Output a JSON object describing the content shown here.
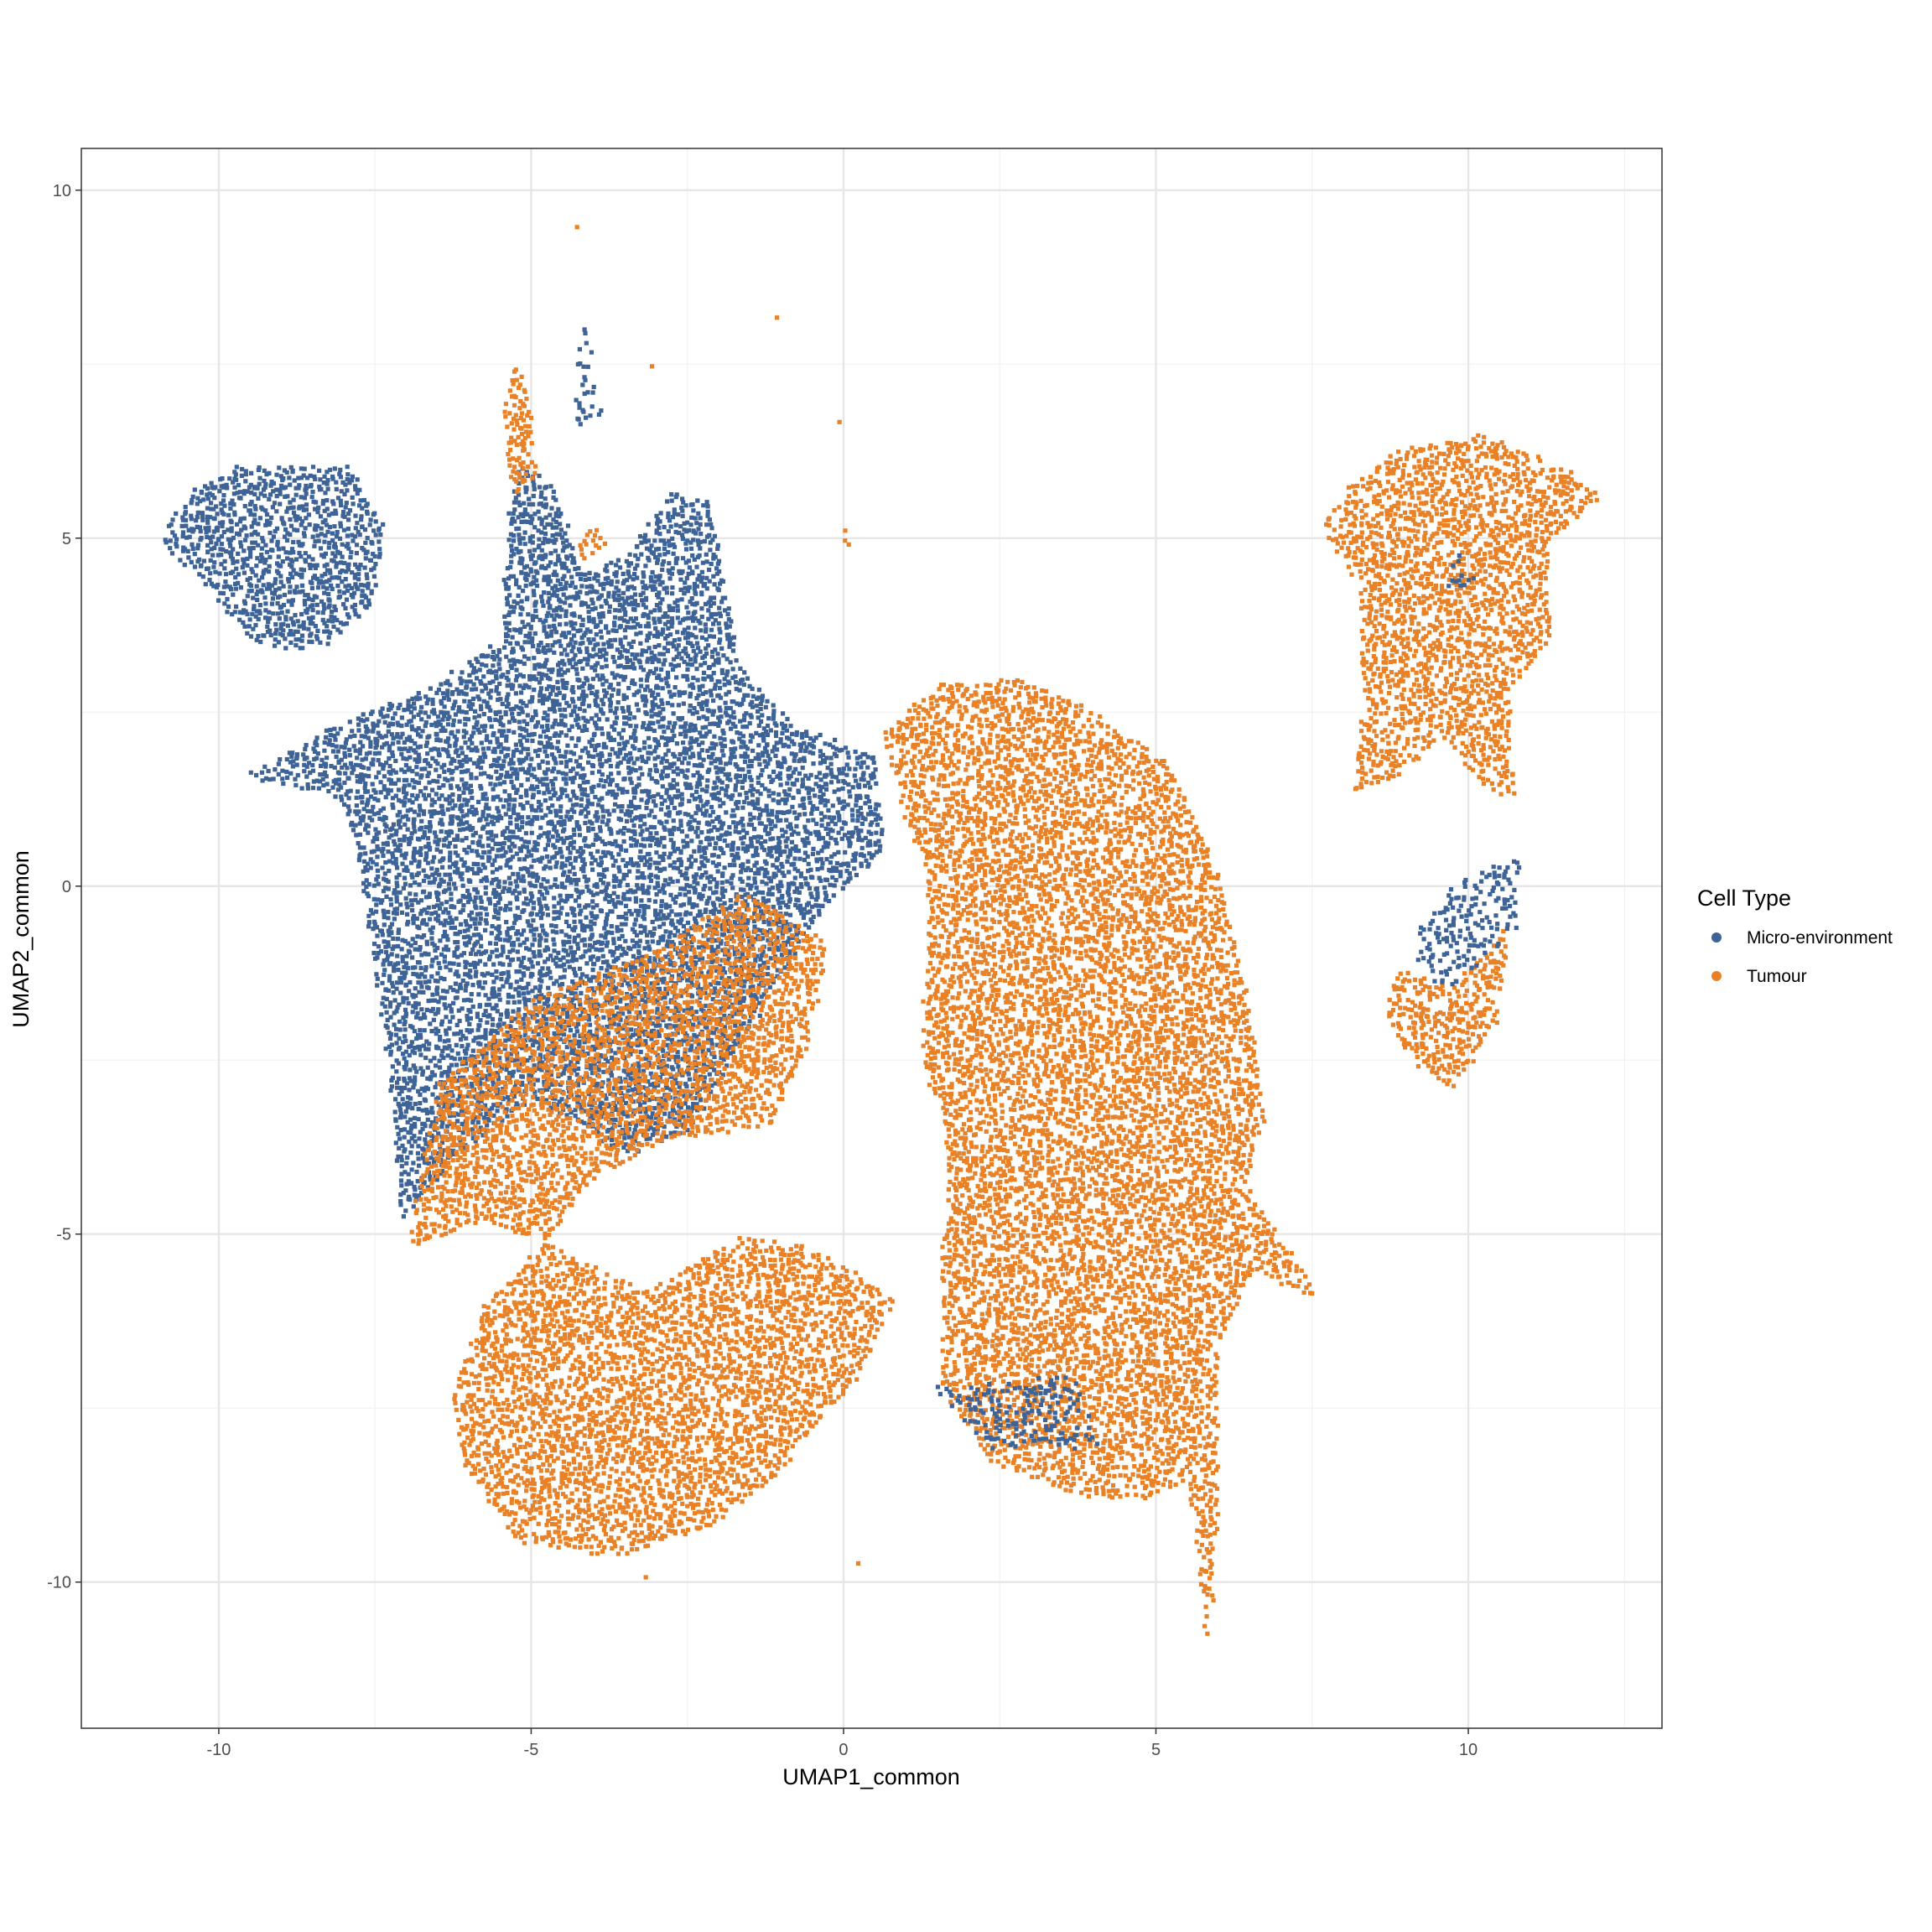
{
  "chart_data": {
    "type": "scatter",
    "xlabel": "UMAP1_common",
    "ylabel": "UMAP2_common",
    "xlim": [
      -12.2,
      13.1
    ],
    "ylim": [
      -12.1,
      10.6
    ],
    "x_ticks": [
      -10,
      -5,
      0,
      5,
      10
    ],
    "y_ticks": [
      -10,
      -5,
      0,
      5,
      10
    ],
    "x_tick_labels": [
      "-10",
      "-5",
      "0",
      "5",
      "10"
    ],
    "y_tick_labels": [
      "-10",
      "-5",
      "0",
      "5",
      "10"
    ],
    "grid": true,
    "legend": {
      "title": "Cell Type",
      "position": "right",
      "entries": [
        "Micro-environment",
        "Tumour"
      ]
    },
    "series": [
      {
        "name": "Micro-environment",
        "color": "#3e6396",
        "regions": [
          [
            [
              -11.0,
              5.0
            ],
            [
              -10.5,
              5.7
            ],
            [
              -9.6,
              6.1
            ],
            [
              -8.0,
              6.1
            ],
            [
              -7.4,
              5.2
            ],
            [
              -7.6,
              4.0
            ],
            [
              -8.5,
              3.4
            ],
            [
              -9.4,
              3.5
            ],
            [
              -10.5,
              4.6
            ]
          ],
          [
            [
              -9.5,
              1.7
            ],
            [
              -8.0,
              2.4
            ],
            [
              -6.6,
              2.9
            ],
            [
              -5.5,
              3.6
            ],
            [
              -5.4,
              5.4
            ],
            [
              -5.2,
              6.1
            ],
            [
              -4.7,
              5.8
            ],
            [
              -4.2,
              4.5
            ],
            [
              -3.5,
              4.8
            ],
            [
              -2.8,
              5.7
            ],
            [
              -2.2,
              5.6
            ],
            [
              -1.9,
              4.4
            ],
            [
              -1.7,
              3.2
            ],
            [
              -0.8,
              2.3
            ],
            [
              0.5,
              1.9
            ],
            [
              0.6,
              0.5
            ],
            [
              -0.3,
              -0.2
            ],
            [
              -1.2,
              -1.5
            ],
            [
              -2.5,
              -3.5
            ],
            [
              -3.5,
              -3.8
            ],
            [
              -5.0,
              -3.0
            ],
            [
              -6.2,
              -3.8
            ],
            [
              -7.1,
              -4.8
            ],
            [
              -7.3,
              -2.5
            ],
            [
              -7.8,
              0.5
            ],
            [
              -8.1,
              1.3
            ],
            [
              -9.5,
              1.6
            ]
          ]
        ],
        "patches": [
          [
            [
              -4.2,
              8.2
            ],
            [
              -3.9,
              6.8
            ],
            [
              -4.4,
              6.6
            ]
          ],
          [
            [
              1.4,
              -7.2
            ],
            [
              3.6,
              -7.0
            ],
            [
              4.1,
              -8.0
            ],
            [
              2.4,
              -8.1
            ]
          ],
          [
            [
              9.2,
              -0.5
            ],
            [
              9.8,
              0.1
            ],
            [
              10.8,
              0.4
            ],
            [
              10.7,
              -0.6
            ],
            [
              9.6,
              -1.6
            ],
            [
              9.2,
              -1.0
            ]
          ],
          [
            [
              9.8,
              4.8
            ],
            [
              10.1,
              4.4
            ],
            [
              9.6,
              4.3
            ]
          ]
        ]
      },
      {
        "name": "Tumour",
        "color": "#e98226",
        "regions": [
          [
            [
              0.6,
              2.2
            ],
            [
              1.5,
              2.9
            ],
            [
              2.8,
              3.0
            ],
            [
              3.8,
              2.6
            ],
            [
              5.2,
              1.8
            ],
            [
              5.8,
              0.6
            ],
            [
              6.2,
              -0.6
            ],
            [
              6.5,
              -1.8
            ],
            [
              6.7,
              -3.3
            ],
            [
              6.4,
              -4.3
            ],
            [
              7.6,
              -5.9
            ],
            [
              6.5,
              -5.5
            ],
            [
              6.0,
              -6.5
            ],
            [
              6.0,
              -8.5
            ],
            [
              5.8,
              -10.9
            ],
            [
              5.5,
              -8.5
            ],
            [
              4.7,
              -8.8
            ],
            [
              3.6,
              -8.7
            ],
            [
              2.3,
              -8.2
            ],
            [
              1.5,
              -7.2
            ],
            [
              1.5,
              -5.9
            ],
            [
              1.6,
              -4.7
            ],
            [
              1.6,
              -3.5
            ],
            [
              1.2,
              -2.5
            ],
            [
              1.3,
              -1.0
            ],
            [
              1.3,
              0.2
            ],
            [
              0.9,
              1.2
            ]
          ],
          [
            [
              -6.5,
              -2.8
            ],
            [
              -5.0,
              -1.6
            ],
            [
              -3.0,
              -0.9
            ],
            [
              -1.6,
              0.0
            ],
            [
              -0.3,
              -0.8
            ],
            [
              -0.6,
              -2.3
            ],
            [
              -1.2,
              -3.4
            ],
            [
              -2.8,
              -3.6
            ],
            [
              -4.1,
              -4.2
            ],
            [
              -4.8,
              -5.1
            ],
            [
              -5.8,
              -4.8
            ],
            [
              -7.0,
              -5.2
            ]
          ],
          [
            [
              -4.8,
              -5.1
            ],
            [
              -3.2,
              -5.8
            ],
            [
              -1.7,
              -5.0
            ],
            [
              -0.5,
              -5.2
            ],
            [
              0.8,
              -5.9
            ],
            [
              0.2,
              -7.0
            ],
            [
              -1.2,
              -8.5
            ],
            [
              -2.2,
              -9.2
            ],
            [
              -3.5,
              -9.6
            ],
            [
              -5.2,
              -9.4
            ],
            [
              -6.1,
              -8.3
            ],
            [
              -6.3,
              -7.3
            ],
            [
              -5.8,
              -6.0
            ]
          ],
          [
            [
              8.1,
              5.8
            ],
            [
              8.9,
              6.3
            ],
            [
              10.2,
              6.5
            ],
            [
              11.2,
              6.2
            ],
            [
              12.1,
              5.6
            ],
            [
              11.2,
              5.0
            ],
            [
              11.3,
              3.6
            ],
            [
              10.6,
              2.8
            ],
            [
              10.7,
              1.3
            ],
            [
              10.2,
              1.5
            ],
            [
              9.6,
              2.2
            ],
            [
              8.8,
              1.6
            ],
            [
              8.1,
              1.4
            ],
            [
              8.3,
              2.6
            ],
            [
              8.2,
              4.4
            ],
            [
              7.6,
              5.2
            ]
          ],
          [
            [
              8.8,
              -1.2
            ],
            [
              9.7,
              -1.4
            ],
            [
              10.6,
              -0.6
            ],
            [
              10.5,
              -1.8
            ],
            [
              9.7,
              -2.9
            ],
            [
              9.0,
              -2.4
            ],
            [
              8.6,
              -1.8
            ]
          ],
          [
            [
              -5.3,
              7.6
            ],
            [
              -5.1,
              7.2
            ],
            [
              -4.9,
              6.0
            ],
            [
              -5.3,
              5.6
            ],
            [
              -5.5,
              6.6
            ]
          ]
        ],
        "patches": [
          [
            [
              -4.1,
              5.3
            ],
            [
              -3.8,
              4.9
            ],
            [
              -4.3,
              4.7
            ]
          ],
          [
            [
              0.0,
              5.2
            ],
            [
              0.1,
              5.0
            ],
            [
              0.0,
              4.9
            ]
          ]
        ]
      }
    ],
    "outlier_points": [
      {
        "series": "Tumour",
        "x": -4.3,
        "y": 9.5
      },
      {
        "series": "Tumour",
        "x": -1.1,
        "y": 8.2
      },
      {
        "series": "Tumour",
        "x": -3.1,
        "y": 7.5
      },
      {
        "series": "Tumour",
        "x": -0.1,
        "y": 6.7
      },
      {
        "series": "Tumour",
        "x": 0.2,
        "y": -9.7
      },
      {
        "series": "Tumour",
        "x": -2.8,
        "y": -9.1
      },
      {
        "series": "Tumour",
        "x": -3.2,
        "y": -9.9
      }
    ]
  }
}
